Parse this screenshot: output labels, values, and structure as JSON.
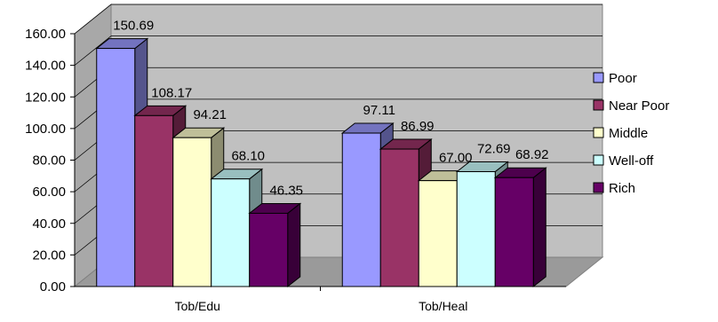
{
  "chart_data": {
    "type": "bar",
    "title": "",
    "xlabel": "",
    "ylabel": "",
    "ylim": [
      0,
      160
    ],
    "ytick_step": 20,
    "ytick_format": "0.00",
    "grid": true,
    "legend_position": "right",
    "style": "3d-clustered",
    "categories": [
      "Tob/Edu",
      "Tob/Heal"
    ],
    "series": [
      {
        "name": "Poor",
        "color": "#9999FF",
        "values": [
          150.69,
          97.11
        ]
      },
      {
        "name": "Near Poor",
        "color": "#993366",
        "values": [
          108.17,
          86.99
        ]
      },
      {
        "name": "Middle",
        "color": "#FFFFCC",
        "values": [
          94.21,
          67.0
        ]
      },
      {
        "name": "Well-off",
        "color": "#CCFFFF",
        "values": [
          68.1,
          72.69
        ]
      },
      {
        "name": "Rich",
        "color": "#660066",
        "values": [
          46.35,
          68.92
        ]
      }
    ],
    "data_labels": [
      [
        "150.69",
        "97.11"
      ],
      [
        "108.17",
        "86.99"
      ],
      [
        "94.21",
        "67.00"
      ],
      [
        "68.10",
        "72.69"
      ],
      [
        "46.35",
        "68.92"
      ]
    ]
  }
}
